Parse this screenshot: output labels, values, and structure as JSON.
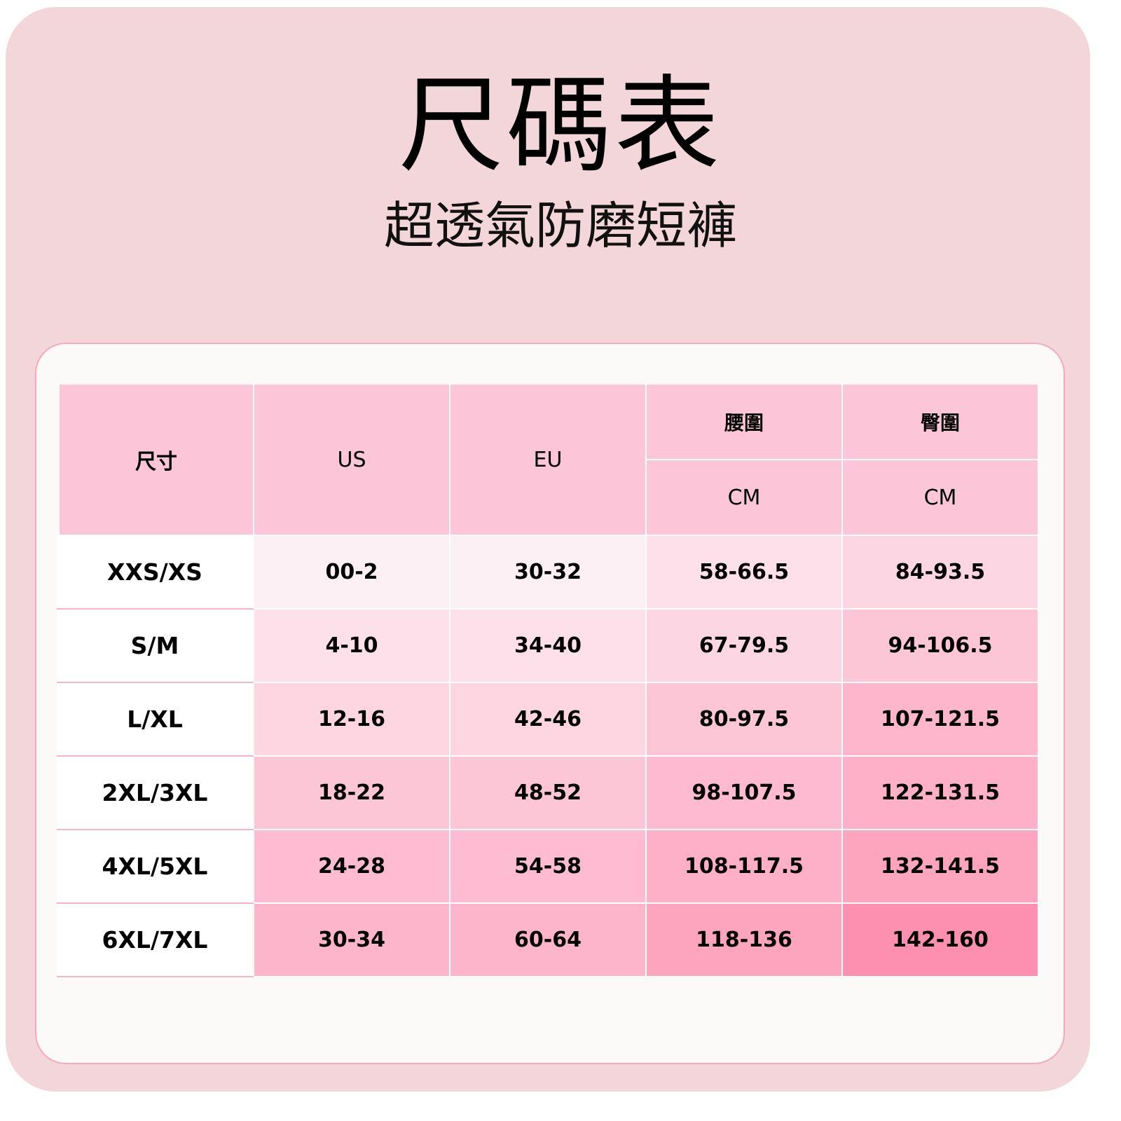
{
  "title": "尺碼表",
  "subtitle": "超透氣防磨短褲",
  "table": {
    "headers": {
      "size": "尺寸",
      "us": "US",
      "eu": "EU",
      "waist": "腰圍",
      "hip": "臀圍",
      "waist_unit": "CM",
      "hip_unit": "CM"
    },
    "rows": [
      {
        "size": "XXS/XS",
        "us": "00-2",
        "eu": "30-32",
        "waist": "58-66.5",
        "hip": "84-93.5"
      },
      {
        "size": "S/M",
        "us": "4-10",
        "eu": "34-40",
        "waist": "67-79.5",
        "hip": "94-106.5"
      },
      {
        "size": "L/XL",
        "us": "12-16",
        "eu": "42-46",
        "waist": "80-97.5",
        "hip": "107-121.5"
      },
      {
        "size": "2XL/3XL",
        "us": "18-22",
        "eu": "48-52",
        "waist": "98-107.5",
        "hip": "122-131.5"
      },
      {
        "size": "4XL/5XL",
        "us": "24-28",
        "eu": "54-58",
        "waist": "108-117.5",
        "hip": "132-141.5"
      },
      {
        "size": "6XL/7XL",
        "us": "30-34",
        "eu": "60-64",
        "waist": "118-136",
        "hip": "142-160"
      }
    ],
    "cell_colors": [
      [
        "#fdf0f4",
        "#fdf0f4",
        "#fde0e9",
        "#fdd6e3"
      ],
      [
        "#fde0ea",
        "#fde0ea",
        "#fdd6e3",
        "#fcc6d7"
      ],
      [
        "#fdd6e2",
        "#fdd6e2",
        "#fcc6d7",
        "#fdb6cb"
      ],
      [
        "#fdc6d7",
        "#fdc6d7",
        "#fdbad0",
        "#fdb0c7"
      ],
      [
        "#fdbcd1",
        "#fdbcd1",
        "#fdb0c8",
        "#fda5bf"
      ],
      [
        "#fdb5cb",
        "#fdb5cb",
        "#fda5bf",
        "#fd8fb1"
      ]
    ],
    "header_color": "#fcc6d8"
  }
}
